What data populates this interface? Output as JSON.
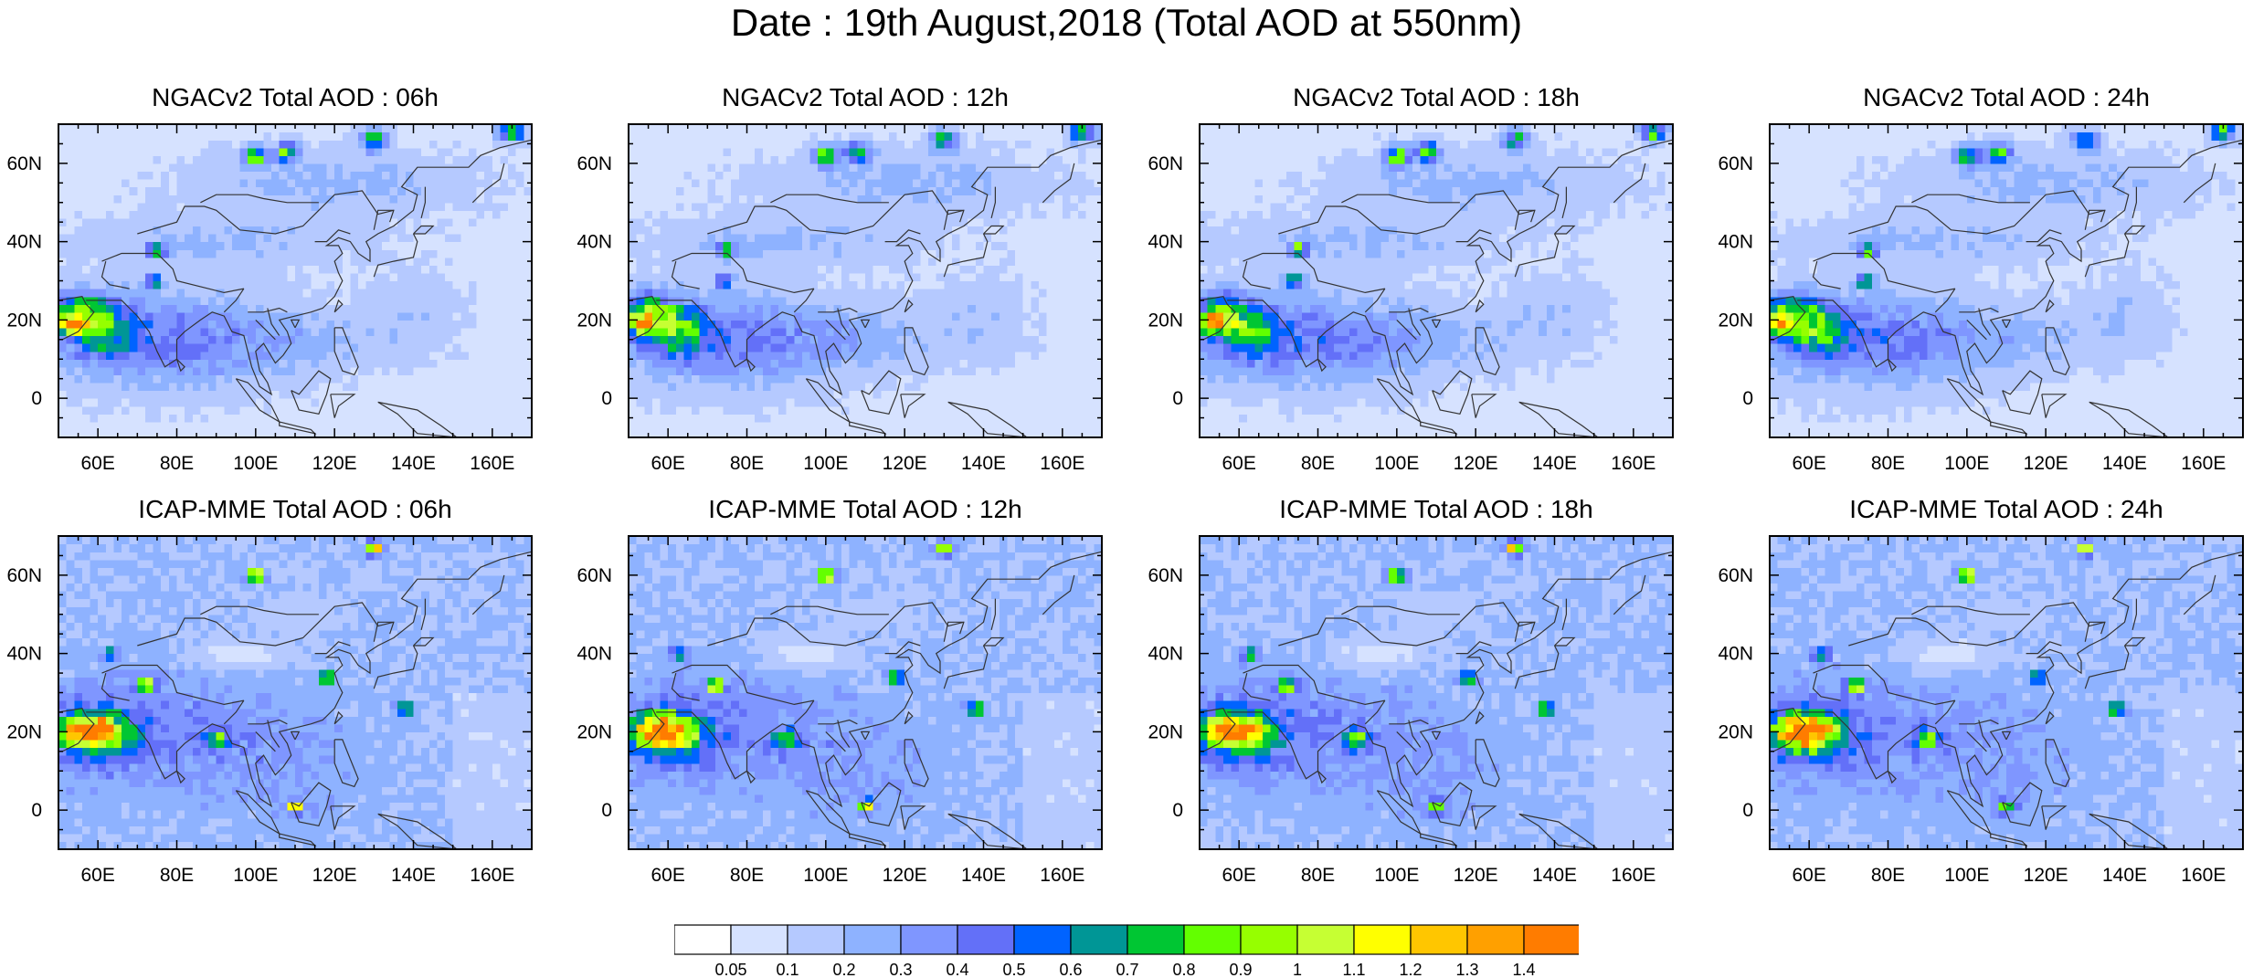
{
  "figure": {
    "title": "Date : 19th August,2018 (Total AOD at 550nm)"
  },
  "panels": [
    {
      "title": "NGACv2 Total AOD : 06h",
      "model": "NGACv2",
      "hour": 6
    },
    {
      "title": "NGACv2 Total AOD : 12h",
      "model": "NGACv2",
      "hour": 12
    },
    {
      "title": "NGACv2 Total AOD : 18h",
      "model": "NGACv2",
      "hour": 18
    },
    {
      "title": "NGACv2 Total AOD : 24h",
      "model": "NGACv2",
      "hour": 24
    },
    {
      "title": "ICAP-MME Total AOD : 06h",
      "model": "ICAP-MME",
      "hour": 6
    },
    {
      "title": "ICAP-MME Total AOD : 12h",
      "model": "ICAP-MME",
      "hour": 12
    },
    {
      "title": "ICAP-MME Total AOD : 18h",
      "model": "ICAP-MME",
      "hour": 18
    },
    {
      "title": "ICAP-MME Total AOD : 24h",
      "model": "ICAP-MME",
      "hour": 24
    }
  ],
  "map": {
    "lon_range": [
      50,
      170
    ],
    "lat_range": [
      -10,
      70
    ],
    "lon_ticks": [
      60,
      80,
      100,
      120,
      140,
      160
    ],
    "lon_tick_labels": [
      "60E",
      "80E",
      "100E",
      "120E",
      "140E",
      "160E"
    ],
    "lat_ticks": [
      0,
      20,
      40,
      60
    ],
    "lat_tick_labels": [
      "0",
      "20N",
      "40N",
      "60N"
    ]
  },
  "colorbar": {
    "labels": [
      "0.05",
      "0.1",
      "0.2",
      "0.3",
      "0.4",
      "0.5",
      "0.6",
      "0.7",
      "0.8",
      "0.9",
      "1",
      "1.1",
      "1.2",
      "1.3",
      "1.4"
    ],
    "colors": [
      "#ffffff",
      "#d6e2ff",
      "#b5c9ff",
      "#8eb2ff",
      "#7f96ff",
      "#6370f8",
      "#0063ff",
      "#009696",
      "#00c633",
      "#63ff00",
      "#96ff00",
      "#c6ff33",
      "#ffff00",
      "#ffc600",
      "#ffa000",
      "#ff7c00",
      "#ff1900"
    ]
  },
  "hotspots": {
    "ngac": [
      {
        "lon": 53,
        "lat": 19,
        "v": 0.85,
        "r": 3
      },
      {
        "lon": 55,
        "lat": 22,
        "v": 0.55,
        "r": 6
      },
      {
        "lon": 62,
        "lat": 18,
        "v": 0.5,
        "r": 8
      },
      {
        "lon": 75,
        "lat": 38,
        "v": 0.85,
        "r": 2
      },
      {
        "lon": 74,
        "lat": 30,
        "v": 0.75,
        "r": 2
      },
      {
        "lon": 100,
        "lat": 62,
        "v": 0.75,
        "r": 3
      },
      {
        "lon": 108,
        "lat": 63,
        "v": 0.7,
        "r": 3
      },
      {
        "lon": 130,
        "lat": 66,
        "v": 0.65,
        "r": 3
      },
      {
        "lon": 165,
        "lat": 68,
        "v": 0.75,
        "r": 3
      }
    ],
    "icap": [
      {
        "lon": 56,
        "lat": 20,
        "v": 0.85,
        "r": 5
      },
      {
        "lon": 62,
        "lat": 20,
        "v": 0.75,
        "r": 5
      },
      {
        "lon": 72,
        "lat": 32,
        "v": 1.1,
        "r": 2
      },
      {
        "lon": 100,
        "lat": 60,
        "v": 1.2,
        "r": 2
      },
      {
        "lon": 130,
        "lat": 67,
        "v": 1.05,
        "r": 2
      },
      {
        "lon": 118,
        "lat": 34,
        "v": 0.8,
        "r": 2
      },
      {
        "lon": 138,
        "lat": 26,
        "v": 0.8,
        "r": 2
      },
      {
        "lon": 110,
        "lat": 1,
        "v": 0.85,
        "r": 2
      },
      {
        "lon": 90,
        "lat": 18,
        "v": 0.6,
        "r": 3
      },
      {
        "lon": 63,
        "lat": 40,
        "v": 0.55,
        "r": 2
      }
    ]
  }
}
